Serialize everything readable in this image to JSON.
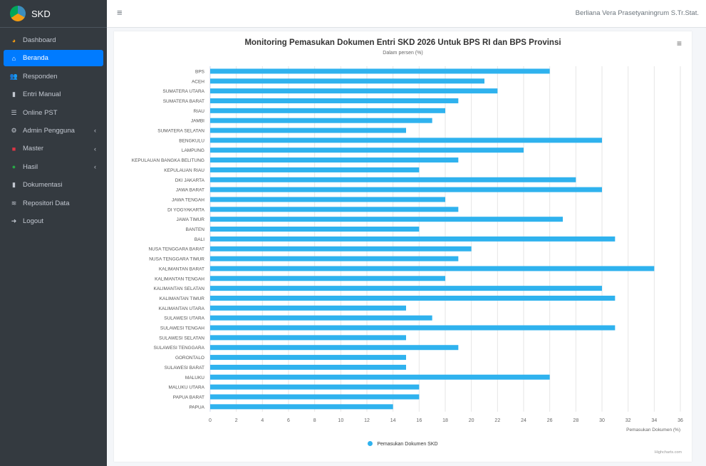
{
  "app": {
    "title": "SKD"
  },
  "navbar": {
    "hamburger": "≡",
    "user": "Berliana Vera Prasetyaningrum S.Tr.Stat."
  },
  "sidebar": {
    "items": [
      {
        "label": "Dashboard",
        "icon": "dashboard-icon",
        "active": false,
        "caret": false
      },
      {
        "label": "Beranda",
        "icon": "home-icon",
        "active": true,
        "caret": false
      },
      {
        "label": "Responden",
        "icon": "users-icon",
        "active": false,
        "caret": false
      },
      {
        "label": "Entri Manual",
        "icon": "file-icon",
        "active": false,
        "caret": false
      },
      {
        "label": "Online PST",
        "icon": "list-icon",
        "active": false,
        "caret": false
      },
      {
        "label": "Admin Pengguna",
        "icon": "user-cog-icon",
        "active": false,
        "caret": true
      },
      {
        "label": "Master",
        "icon": "folder-icon",
        "active": false,
        "caret": true
      },
      {
        "label": "Hasil",
        "icon": "circle-icon",
        "active": false,
        "caret": true
      },
      {
        "label": "Dokumentasi",
        "icon": "doc-icon",
        "active": false,
        "caret": false
      },
      {
        "label": "Repositori Data",
        "icon": "database-icon",
        "active": false,
        "caret": false
      },
      {
        "label": "Logout",
        "icon": "logout-icon",
        "active": false,
        "caret": false
      }
    ],
    "caret_glyph": "‹"
  },
  "card": {
    "export_glyph": "≡",
    "credits": "Highcharts.com"
  },
  "chart_data": {
    "type": "bar",
    "title": "Monitoring Pemasukan Dokumen Entri SKD 2026 Untuk BPS RI dan BPS Provinsi",
    "subtitle": "Dalam persen (%)",
    "xlabel": "Pemasukan Dokumen (%)",
    "ylabel": "",
    "xlim": [
      0,
      36
    ],
    "ticks": [
      0,
      2,
      4,
      6,
      8,
      10,
      12,
      14,
      16,
      18,
      20,
      22,
      24,
      26,
      28,
      30,
      32,
      34,
      36
    ],
    "grid": true,
    "legend_position": "bottom-center",
    "bar_color": "#2fb2ee",
    "categories": [
      "BPS",
      "ACEH",
      "SUMATERA UTARA",
      "SUMATERA BARAT",
      "RIAU",
      "JAMBI",
      "SUMATERA SELATAN",
      "BENGKULU",
      "LAMPUNG",
      "KEPULAUAN BANGKA BELITUNG",
      "KEPULAUAN RIAU",
      "DKI JAKARTA",
      "JAWA BARAT",
      "JAWA TENGAH",
      "DI YOGYAKARTA",
      "JAWA TIMUR",
      "BANTEN",
      "BALI",
      "NUSA TENGGARA BARAT",
      "NUSA TENGGARA TIMUR",
      "KALIMANTAN BARAT",
      "KALIMANTAN TENGAH",
      "KALIMANTAN SELATAN",
      "KALIMANTAN TIMUR",
      "KALIMANTAN UTARA",
      "SULAWESI UTARA",
      "SULAWESI TENGAH",
      "SULAWESI SELATAN",
      "SULAWESI TENGGARA",
      "GORONTALO",
      "SULAWESI BARAT",
      "MALUKU",
      "MALUKU UTARA",
      "PAPUA BARAT",
      "PAPUA"
    ],
    "series": [
      {
        "name": "Pemasukan Dokumen SKD",
        "values": [
          26,
          21,
          22,
          19,
          18,
          17,
          15,
          30,
          24,
          19,
          16,
          28,
          30,
          18,
          19,
          27,
          16,
          31,
          20,
          19,
          34,
          18,
          30,
          31,
          15,
          17,
          31,
          15,
          19,
          15,
          15,
          26,
          16,
          16,
          14
        ]
      }
    ]
  }
}
